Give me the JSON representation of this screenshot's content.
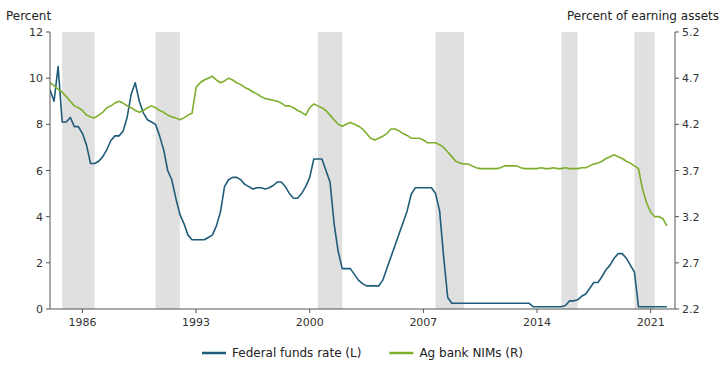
{
  "chart_data": {
    "type": "line",
    "ylabel": "Percent",
    "y2label": "Percent of earning assets",
    "xlim": [
      1984.0,
      2022.5
    ],
    "ylim": [
      0,
      12
    ],
    "y2lim": [
      2.2,
      5.2
    ],
    "yticks": [
      0,
      2,
      4,
      6,
      8,
      10,
      12
    ],
    "y2ticks": [
      2.2,
      2.7,
      3.2,
      3.7,
      4.2,
      4.7,
      5.2
    ],
    "xticks": [
      1986,
      1993,
      2000,
      2007,
      2014,
      2021
    ],
    "grid": false,
    "legend": "bottom",
    "recession_bands": [
      [
        1984.75,
        1986.75
      ],
      [
        1990.5,
        1992.0
      ],
      [
        2000.5,
        2002.0
      ],
      [
        2007.75,
        2009.5
      ],
      [
        2015.5,
        2016.5
      ],
      [
        2020.0,
        2021.25
      ]
    ],
    "x": [
      1984.0,
      1984.25,
      1984.5,
      1984.75,
      1985.0,
      1985.25,
      1985.5,
      1985.75,
      1986.0,
      1986.25,
      1986.5,
      1986.75,
      1987.0,
      1987.25,
      1987.5,
      1987.75,
      1988.0,
      1988.25,
      1988.5,
      1988.75,
      1989.0,
      1989.25,
      1989.5,
      1989.75,
      1990.0,
      1990.25,
      1990.5,
      1990.75,
      1991.0,
      1991.25,
      1991.5,
      1991.75,
      1992.0,
      1992.25,
      1992.5,
      1992.75,
      1993.0,
      1993.25,
      1993.5,
      1993.75,
      1994.0,
      1994.25,
      1994.5,
      1994.75,
      1995.0,
      1995.25,
      1995.5,
      1995.75,
      1996.0,
      1996.25,
      1996.5,
      1996.75,
      1997.0,
      1997.25,
      1997.5,
      1997.75,
      1998.0,
      1998.25,
      1998.5,
      1998.75,
      1999.0,
      1999.25,
      1999.5,
      1999.75,
      2000.0,
      2000.25,
      2000.5,
      2000.75,
      2001.0,
      2001.25,
      2001.5,
      2001.75,
      2002.0,
      2002.25,
      2002.5,
      2002.75,
      2003.0,
      2003.25,
      2003.5,
      2003.75,
      2004.0,
      2004.25,
      2004.5,
      2004.75,
      2005.0,
      2005.25,
      2005.5,
      2005.75,
      2006.0,
      2006.25,
      2006.5,
      2006.75,
      2007.0,
      2007.25,
      2007.5,
      2007.75,
      2008.0,
      2008.25,
      2008.5,
      2008.75,
      2009.0,
      2009.25,
      2009.5,
      2009.75,
      2010.0,
      2010.25,
      2010.5,
      2010.75,
      2011.0,
      2011.25,
      2011.5,
      2011.75,
      2012.0,
      2012.25,
      2012.5,
      2012.75,
      2013.0,
      2013.25,
      2013.5,
      2013.75,
      2014.0,
      2014.25,
      2014.5,
      2014.75,
      2015.0,
      2015.25,
      2015.5,
      2015.75,
      2016.0,
      2016.25,
      2016.5,
      2016.75,
      2017.0,
      2017.25,
      2017.5,
      2017.75,
      2018.0,
      2018.25,
      2018.5,
      2018.75,
      2019.0,
      2019.25,
      2019.5,
      2019.75,
      2020.0,
      2020.25,
      2020.5,
      2020.75,
      2021.0,
      2021.25,
      2021.5,
      2021.75,
      2022.0
    ],
    "series": [
      {
        "name": "Federal funds rate (L)",
        "color": "#1f5c7a",
        "axis": "y",
        "values": [
          9.5,
          9.0,
          10.5,
          8.1,
          8.1,
          8.3,
          7.9,
          7.9,
          7.6,
          7.1,
          6.3,
          6.3,
          6.4,
          6.6,
          6.9,
          7.3,
          7.5,
          7.5,
          7.7,
          8.3,
          9.3,
          9.8,
          9.0,
          8.5,
          8.2,
          8.1,
          8.0,
          7.5,
          6.9,
          6.0,
          5.6,
          4.8,
          4.1,
          3.7,
          3.2,
          3.0,
          3.0,
          3.0,
          3.0,
          3.1,
          3.2,
          3.6,
          4.2,
          5.3,
          5.6,
          5.7,
          5.7,
          5.6,
          5.4,
          5.3,
          5.2,
          5.25,
          5.25,
          5.2,
          5.25,
          5.35,
          5.5,
          5.5,
          5.3,
          5.0,
          4.8,
          4.8,
          5.0,
          5.3,
          5.7,
          6.5,
          6.5,
          6.5,
          6.0,
          5.5,
          3.7,
          2.5,
          1.75,
          1.75,
          1.75,
          1.5,
          1.25,
          1.1,
          1.0,
          1.0,
          1.0,
          1.0,
          1.25,
          1.75,
          2.25,
          2.75,
          3.25,
          3.75,
          4.25,
          4.97,
          5.25,
          5.25,
          5.25,
          5.25,
          5.25,
          5.0,
          4.25,
          2.25,
          0.5,
          0.25,
          0.25,
          0.25,
          0.25,
          0.25,
          0.25,
          0.25,
          0.25,
          0.25,
          0.25,
          0.25,
          0.25,
          0.25,
          0.25,
          0.25,
          0.25,
          0.25,
          0.25,
          0.25,
          0.25,
          0.1,
          0.1,
          0.1,
          0.1,
          0.1,
          0.1,
          0.1,
          0.1,
          0.15,
          0.35,
          0.35,
          0.4,
          0.55,
          0.65,
          0.9,
          1.15,
          1.15,
          1.4,
          1.7,
          1.9,
          2.2,
          2.4,
          2.4,
          2.2,
          1.9,
          1.6,
          0.1,
          0.1,
          0.1,
          0.1,
          0.1,
          0.1,
          0.1,
          0.1
        ]
      },
      {
        "name": "Ag bank NIMs (R)",
        "color": "#7daf2c",
        "axis": "y2",
        "values": [
          4.65,
          4.62,
          4.58,
          4.55,
          4.5,
          4.45,
          4.4,
          4.38,
          4.35,
          4.3,
          4.28,
          4.27,
          4.3,
          4.33,
          4.38,
          4.4,
          4.43,
          4.45,
          4.43,
          4.4,
          4.38,
          4.35,
          4.33,
          4.35,
          4.38,
          4.4,
          4.38,
          4.35,
          4.33,
          4.3,
          4.28,
          4.27,
          4.25,
          4.27,
          4.3,
          4.32,
          4.6,
          4.65,
          4.68,
          4.7,
          4.72,
          4.68,
          4.65,
          4.67,
          4.7,
          4.68,
          4.65,
          4.63,
          4.6,
          4.58,
          4.55,
          4.53,
          4.5,
          4.48,
          4.47,
          4.46,
          4.45,
          4.43,
          4.4,
          4.4,
          4.38,
          4.35,
          4.33,
          4.3,
          4.38,
          4.42,
          4.4,
          4.38,
          4.35,
          4.3,
          4.25,
          4.2,
          4.18,
          4.2,
          4.22,
          4.2,
          4.18,
          4.15,
          4.1,
          4.05,
          4.03,
          4.05,
          4.07,
          4.1,
          4.15,
          4.15,
          4.13,
          4.1,
          4.08,
          4.05,
          4.05,
          4.05,
          4.03,
          4.0,
          4.0,
          4.0,
          3.98,
          3.95,
          3.9,
          3.85,
          3.8,
          3.78,
          3.77,
          3.77,
          3.75,
          3.73,
          3.72,
          3.72,
          3.72,
          3.72,
          3.72,
          3.73,
          3.75,
          3.75,
          3.75,
          3.75,
          3.73,
          3.72,
          3.72,
          3.72,
          3.72,
          3.73,
          3.72,
          3.72,
          3.73,
          3.72,
          3.72,
          3.73,
          3.72,
          3.72,
          3.72,
          3.73,
          3.73,
          3.75,
          3.77,
          3.78,
          3.8,
          3.83,
          3.85,
          3.87,
          3.85,
          3.83,
          3.8,
          3.78,
          3.75,
          3.72,
          3.5,
          3.35,
          3.25,
          3.2,
          3.2,
          3.18,
          3.1
        ]
      }
    ]
  }
}
